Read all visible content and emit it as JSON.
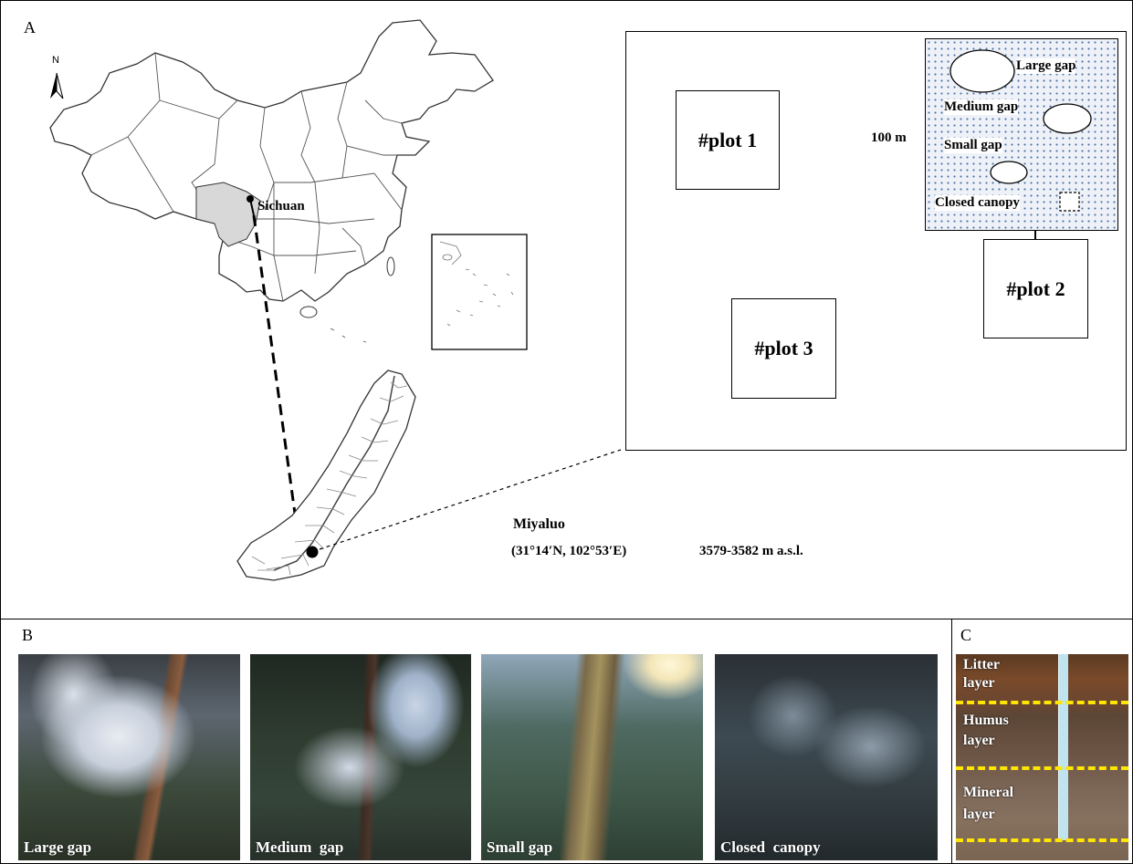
{
  "panels": {
    "a_label": "A",
    "b_label": "B",
    "c_label": "C"
  },
  "map": {
    "north_label": "N",
    "province_label": "Sichuan"
  },
  "site": {
    "name": "Miyaluo",
    "coords": "(31°14′N, 102°53′E)",
    "elevation": "3579-3582 m a.s.l."
  },
  "plots": {
    "plot1": "#plot 1",
    "plot2": "#plot 2",
    "plot3": "#plot 3"
  },
  "plot_inset": {
    "size_label": "100 m",
    "large_gap": "Large gap",
    "medium_gap": "Medium gap",
    "small_gap": "Small gap",
    "closed_canopy": "Closed canopy"
  },
  "photos": [
    {
      "label": "Large gap"
    },
    {
      "label": "Medium  gap"
    },
    {
      "label": "Small gap"
    },
    {
      "label": "Closed  canopy"
    }
  ],
  "soil": {
    "litter": "Litter layer",
    "humus": "Humus layer",
    "mineral": "Mineral layer",
    "divider_color": "#ffe600"
  }
}
